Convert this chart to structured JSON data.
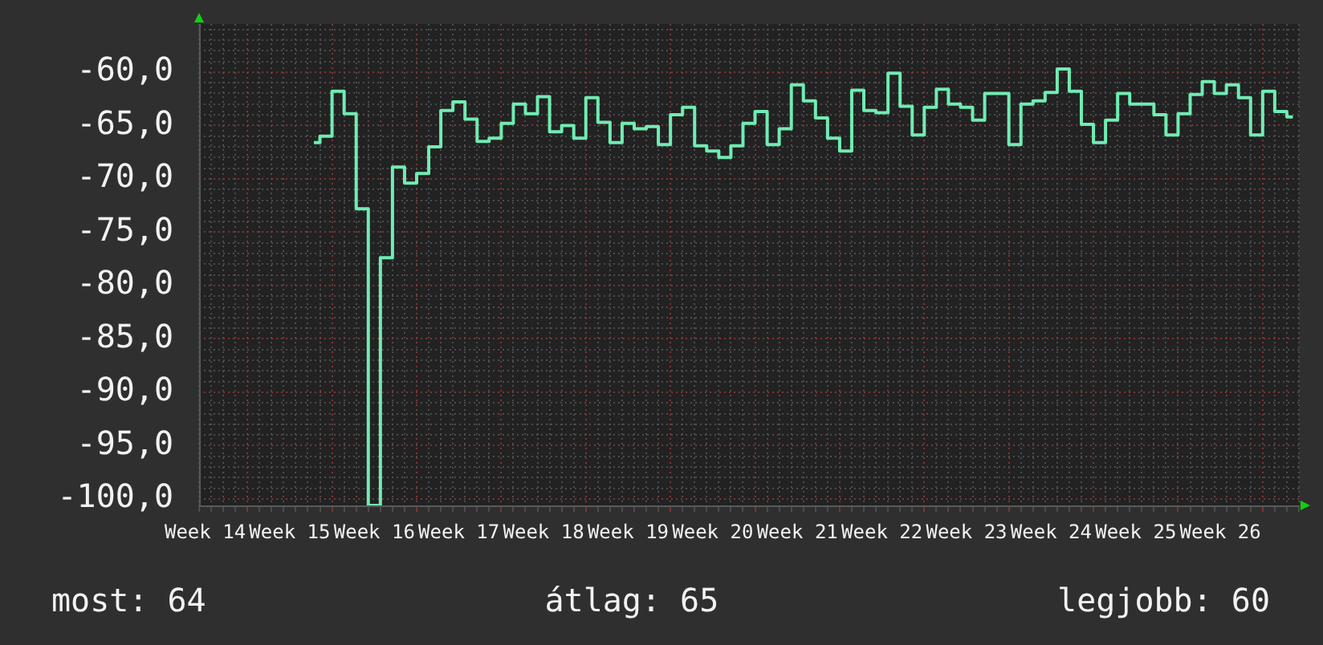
{
  "chart_data": {
    "type": "step",
    "categories": [
      "Week 14",
      null,
      null,
      null,
      null,
      null,
      null,
      "Week 15",
      null,
      null,
      null,
      null,
      null,
      null,
      "Week 16",
      null,
      null,
      null,
      null,
      null,
      null,
      "Week 17",
      null,
      null,
      null,
      null,
      null,
      null,
      "Week 18",
      null,
      null,
      null,
      null,
      null,
      null,
      "Week 19",
      null,
      null,
      null,
      null,
      null,
      null,
      "Week 20",
      null,
      null,
      null,
      null,
      null,
      null,
      "Week 21",
      null,
      null,
      null,
      null,
      null,
      null,
      "Week 22",
      null,
      null,
      null,
      null,
      null,
      null,
      "Week 23",
      null,
      null,
      null,
      null,
      null,
      null,
      "Week 24",
      null,
      null,
      null,
      null,
      null,
      null,
      "Week 25",
      null,
      null,
      null,
      null,
      null,
      null,
      "Week 26",
      null,
      null,
      null,
      null,
      null,
      null
    ],
    "values": [
      null,
      null,
      null,
      null,
      null,
      null,
      null,
      null,
      null,
      -66.6,
      -66.0,
      -61.8,
      -63.9,
      -72.8,
      -100.6,
      -77.4,
      -68.9,
      -70.4,
      -69.5,
      -67.0,
      -63.6,
      -62.8,
      -64.4,
      -66.5,
      -66.2,
      -64.8,
      -63.0,
      -63.9,
      -62.3,
      -65.6,
      -65.0,
      -66.2,
      -62.4,
      -64.7,
      -66.6,
      -64.8,
      -65.3,
      -65.1,
      -66.8,
      -64.0,
      -63.3,
      -66.9,
      -67.4,
      -68.0,
      -66.9,
      -64.8,
      -63.7,
      -66.8,
      -65.3,
      -61.2,
      -62.7,
      -64.3,
      -66.2,
      -67.4,
      -61.7,
      -63.6,
      -63.8,
      -60.1,
      -63.2,
      -65.9,
      -63.3,
      -61.6,
      -63.0,
      -63.3,
      -64.5,
      -62.0,
      -62.0,
      -66.8,
      -63.0,
      -62.7,
      -61.9,
      -59.7,
      -61.8,
      -64.9,
      -66.6,
      -64.5,
      -62.0,
      -63.0,
      -63.0,
      -64.0,
      -65.9,
      -63.9,
      -62.1,
      -60.9,
      -62.0,
      -61.2,
      -62.4,
      -65.9,
      -61.8,
      -63.7,
      -64.2
    ],
    "color": "#70ecb2",
    "ylim": [
      -100.6,
      -55.5
    ],
    "yticks": [
      {
        "value": -100,
        "label": "-100,0"
      },
      {
        "value": -99,
        "label": null
      },
      {
        "value": -98,
        "label": null
      },
      {
        "value": -97,
        "label": null
      },
      {
        "value": -96,
        "label": null
      },
      {
        "value": -95,
        "label": "-95,0"
      },
      {
        "value": -94,
        "label": null
      },
      {
        "value": -93,
        "label": null
      },
      {
        "value": -92,
        "label": null
      },
      {
        "value": -91,
        "label": null
      },
      {
        "value": -90,
        "label": "-90,0"
      },
      {
        "value": -89,
        "label": null
      },
      {
        "value": -88,
        "label": null
      },
      {
        "value": -87,
        "label": null
      },
      {
        "value": -86,
        "label": null
      },
      {
        "value": -85,
        "label": "-85,0"
      },
      {
        "value": -84,
        "label": null
      },
      {
        "value": -83,
        "label": null
      },
      {
        "value": -82,
        "label": null
      },
      {
        "value": -81,
        "label": null
      },
      {
        "value": -80,
        "label": "-80,0"
      },
      {
        "value": -79,
        "label": null
      },
      {
        "value": -78,
        "label": null
      },
      {
        "value": -77,
        "label": null
      },
      {
        "value": -76,
        "label": null
      },
      {
        "value": -75,
        "label": "-75,0"
      },
      {
        "value": -74,
        "label": null
      },
      {
        "value": -73,
        "label": null
      },
      {
        "value": -72,
        "label": null
      },
      {
        "value": -71,
        "label": null
      },
      {
        "value": -70,
        "label": "-70,0"
      },
      {
        "value": -69,
        "label": null
      },
      {
        "value": -68,
        "label": null
      },
      {
        "value": -67,
        "label": null
      },
      {
        "value": -66,
        "label": null
      },
      {
        "value": -65,
        "label": "-65,0"
      },
      {
        "value": -64,
        "label": null
      },
      {
        "value": -63,
        "label": null
      },
      {
        "value": -62,
        "label": null
      },
      {
        "value": -61,
        "label": null
      },
      {
        "value": -60,
        "label": "-60,0"
      },
      {
        "value": -59,
        "label": null
      },
      {
        "value": -58,
        "label": null
      },
      {
        "value": -57,
        "label": null
      },
      {
        "value": -56,
        "label": null
      }
    ],
    "grid": true,
    "annotations": [
      "most: 64",
      "átlag: 65",
      "legjobb: 60"
    ]
  }
}
